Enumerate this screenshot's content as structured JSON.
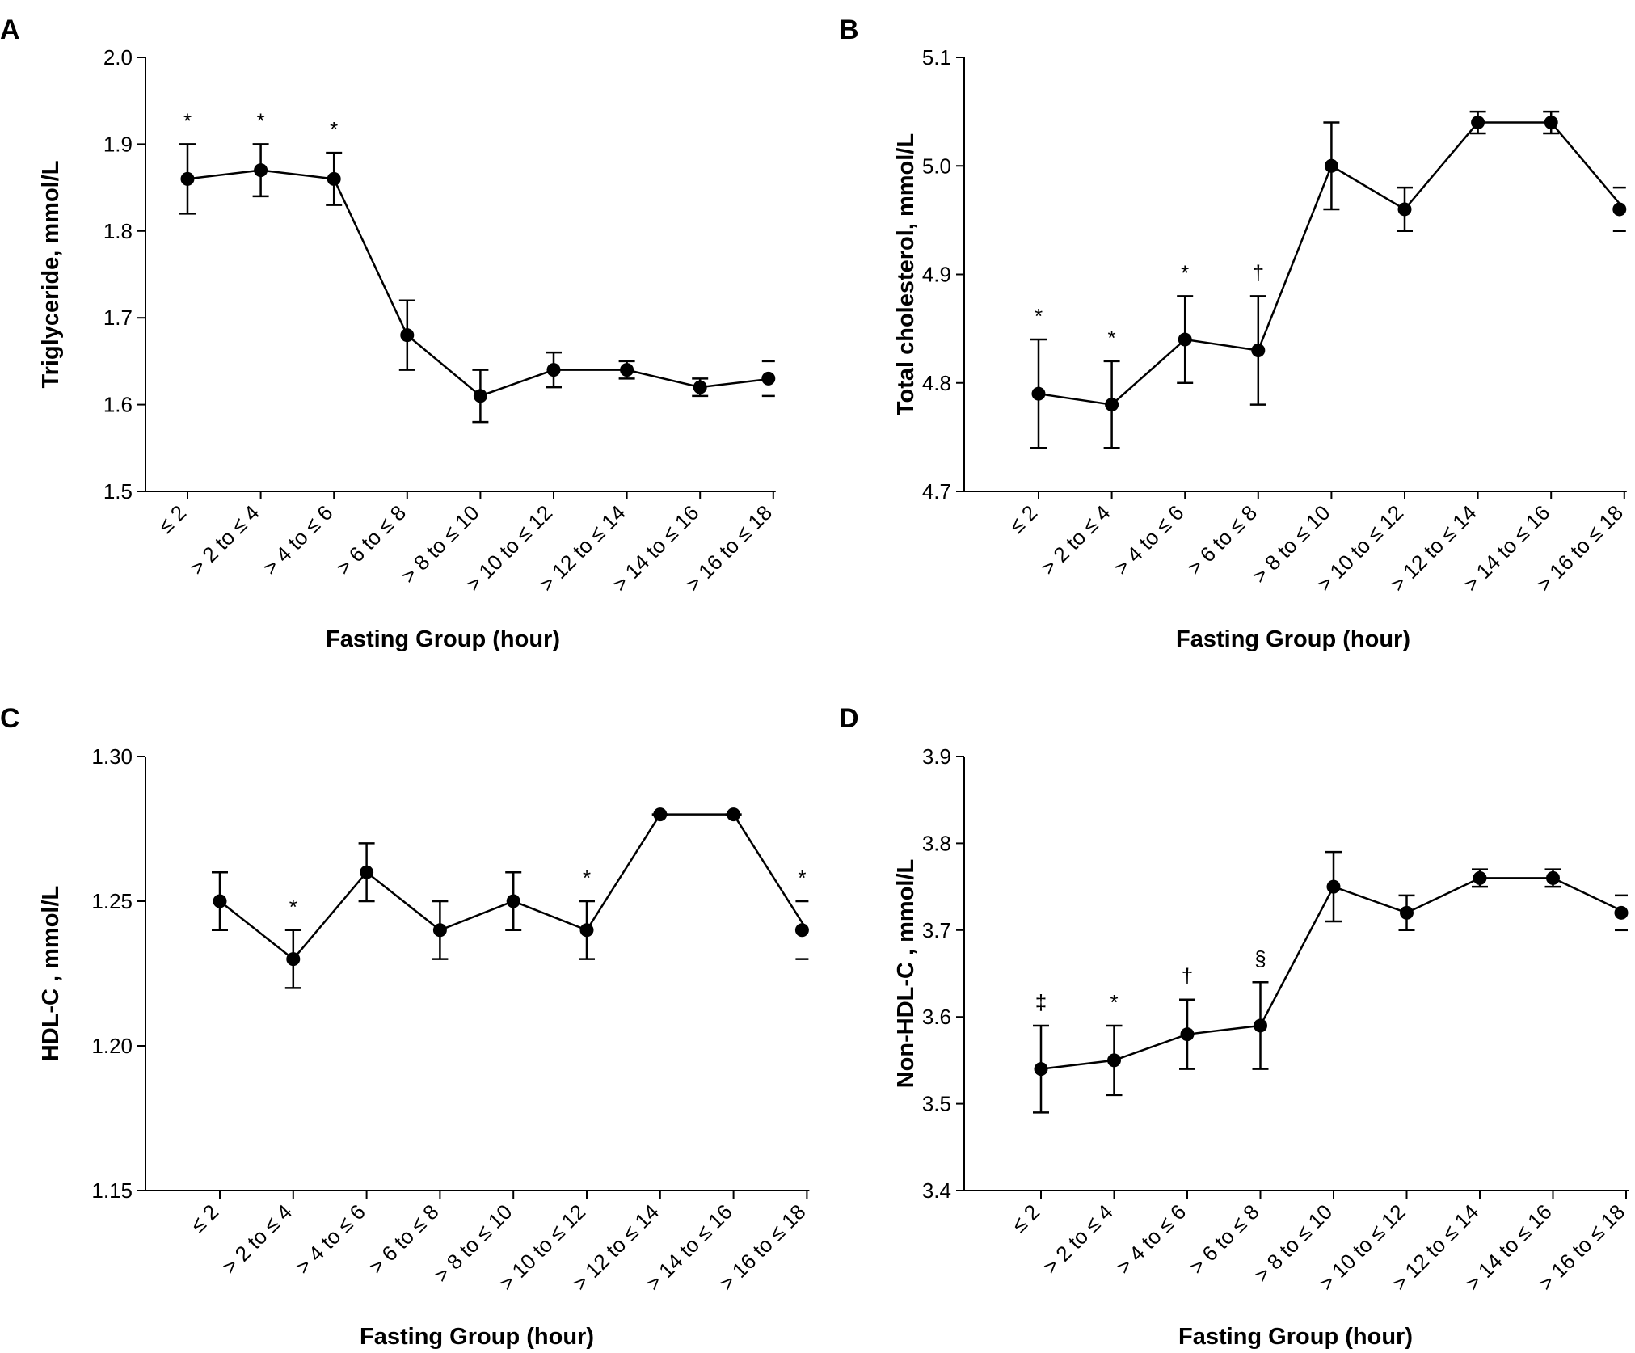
{
  "colors": {
    "ink": "#000000",
    "background": "#ffffff"
  },
  "chart_data": [
    {
      "type": "line",
      "panel": "A",
      "xlabel": "Fasting Group (hour)",
      "ylabel": "Triglyceride, mmol/L",
      "categories": [
        "≤ 2",
        "> 2 to ≤ 4",
        "> 4 to ≤ 6",
        "> 6 to ≤ 8",
        "> 8 to ≤ 10",
        "> 10 to ≤ 12",
        "> 12 to ≤ 14",
        "> 14 to ≤ 16",
        "> 16 to ≤ 18"
      ],
      "ylim": [
        1.5,
        2.0
      ],
      "yticks": [
        1.5,
        1.6,
        1.7,
        1.8,
        1.9,
        2.0
      ],
      "ytick_labels": [
        "1.5",
        "1.6",
        "1.7",
        "1.8",
        "1.9",
        "2.0"
      ],
      "series": [
        {
          "name": "Triglyceride",
          "values": [
            1.86,
            1.87,
            1.86,
            1.68,
            1.61,
            1.64,
            1.64,
            1.62,
            1.63
          ],
          "err_low": [
            1.82,
            1.84,
            1.83,
            1.64,
            1.58,
            1.62,
            1.63,
            1.61,
            1.61
          ],
          "err_high": [
            1.9,
            1.9,
            1.89,
            1.72,
            1.64,
            1.66,
            1.65,
            1.63,
            1.65
          ]
        }
      ],
      "annotations": [
        "*",
        "*",
        "*",
        "",
        "",
        "",
        "",
        "",
        ""
      ],
      "grid": false,
      "legend": "none"
    },
    {
      "type": "line",
      "panel": "B",
      "xlabel": "Fasting Group (hour)",
      "ylabel": "Total cholesterol, mmol/L",
      "categories": [
        "≤ 2",
        "> 2 to ≤ 4",
        "> 4 to ≤ 6",
        "> 6 to ≤ 8",
        "> 8 to ≤ 10",
        "> 10 to ≤ 12",
        "> 12 to ≤ 14",
        "> 14 to ≤ 16",
        "> 16 to ≤ 18"
      ],
      "ylim": [
        4.7,
        5.1
      ],
      "yticks": [
        4.7,
        4.8,
        4.9,
        5.0,
        5.1
      ],
      "ytick_labels": [
        "4.7",
        "4.8",
        "4.9",
        "5.0",
        "5.1"
      ],
      "series": [
        {
          "name": "Total cholesterol",
          "values": [
            4.79,
            4.78,
            4.84,
            4.83,
            5.0,
            4.96,
            5.04,
            5.04,
            4.96
          ],
          "err_low": [
            4.74,
            4.74,
            4.8,
            4.78,
            4.96,
            4.94,
            5.03,
            5.03,
            4.94
          ],
          "err_high": [
            4.84,
            4.82,
            4.88,
            4.88,
            5.04,
            4.98,
            5.05,
            5.05,
            4.98
          ]
        }
      ],
      "annotations": [
        "*",
        "*",
        "*",
        "†",
        "",
        "",
        "",
        "",
        ""
      ],
      "grid": false,
      "legend": "none"
    },
    {
      "type": "line",
      "panel": "C",
      "xlabel": "Fasting Group (hour)",
      "ylabel": "HDL-C , mmol/L",
      "categories": [
        "≤ 2",
        "> 2 to ≤ 4",
        "> 4 to ≤ 6",
        "> 6 to ≤ 8",
        "> 8 to ≤ 10",
        "> 10 to ≤ 12",
        "> 12 to ≤ 14",
        "> 14 to ≤ 16",
        "> 16 to ≤ 18"
      ],
      "ylim": [
        1.15,
        1.3
      ],
      "yticks": [
        1.15,
        1.2,
        1.25,
        1.3
      ],
      "ytick_labels": [
        "1.15",
        "1.20",
        "1.25",
        "1.30"
      ],
      "series": [
        {
          "name": "HDL-C",
          "values": [
            1.25,
            1.23,
            1.26,
            1.24,
            1.25,
            1.24,
            1.28,
            1.28,
            1.24
          ],
          "err_low": [
            1.24,
            1.22,
            1.25,
            1.23,
            1.24,
            1.23,
            1.28,
            1.28,
            1.23
          ],
          "err_high": [
            1.26,
            1.24,
            1.27,
            1.25,
            1.26,
            1.25,
            1.28,
            1.28,
            1.25
          ]
        }
      ],
      "annotations": [
        "",
        "*",
        "",
        "",
        "",
        "*",
        "",
        "",
        "*"
      ],
      "grid": false,
      "legend": "none"
    },
    {
      "type": "line",
      "panel": "D",
      "xlabel": "Fasting Group (hour)",
      "ylabel": "Non-HDL-C , mmol/L",
      "categories": [
        "≤ 2",
        "> 2 to ≤ 4",
        "> 4 to ≤ 6",
        "> 6 to ≤ 8",
        "> 8 to ≤ 10",
        "> 10 to ≤ 12",
        "> 12 to ≤ 14",
        "> 14 to ≤ 16",
        "> 16 to ≤ 18"
      ],
      "ylim": [
        3.4,
        3.9
      ],
      "yticks": [
        3.4,
        3.5,
        3.6,
        3.7,
        3.8,
        3.9
      ],
      "ytick_labels": [
        "3.4",
        "3.5",
        "3.6",
        "3.7",
        "3.8",
        "3.9"
      ],
      "series": [
        {
          "name": "Non-HDL-C",
          "values": [
            3.54,
            3.55,
            3.58,
            3.59,
            3.75,
            3.72,
            3.76,
            3.76,
            3.72
          ],
          "err_low": [
            3.49,
            3.51,
            3.54,
            3.54,
            3.71,
            3.7,
            3.75,
            3.75,
            3.7
          ],
          "err_high": [
            3.59,
            3.59,
            3.62,
            3.64,
            3.79,
            3.74,
            3.77,
            3.77,
            3.74
          ]
        }
      ],
      "annotations": [
        "‡",
        "*",
        "†",
        "§",
        "",
        "",
        "",
        "",
        ""
      ],
      "grid": false,
      "legend": "none"
    }
  ]
}
